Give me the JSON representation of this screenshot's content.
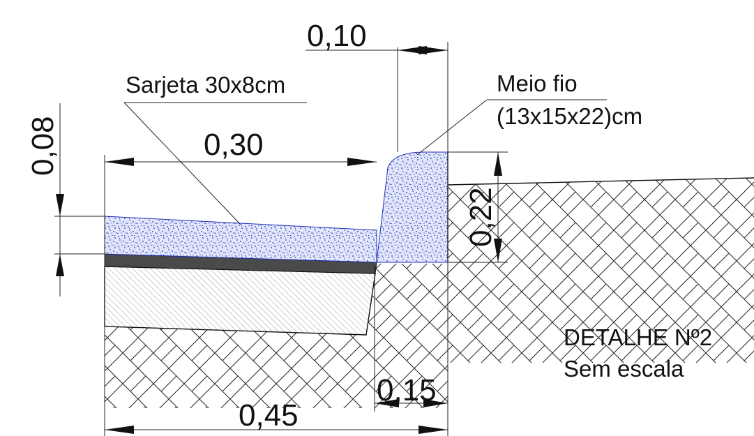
{
  "drawing": {
    "annotations": {
      "gutter": "Sarjeta 30x8cm",
      "curb_line1": "Meio fio",
      "curb_line2": "(13x15x22)cm"
    },
    "dimensions": {
      "curb_top": "0,10",
      "gutter_width": "0,30",
      "gutter_thickness": "0,08",
      "curb_height": "0,22",
      "curb_base": "0,15",
      "total_width": "0,45"
    },
    "title": {
      "line1": "DETALHE Nº2",
      "line2": "Sem escala"
    },
    "colors": {
      "concrete_fill": "#e2e6fb",
      "concrete_speckle": "#1f2fb8",
      "line": "#111111",
      "asphalt": "#4a4a4a",
      "base_hatch": "#9a9a9a"
    }
  }
}
